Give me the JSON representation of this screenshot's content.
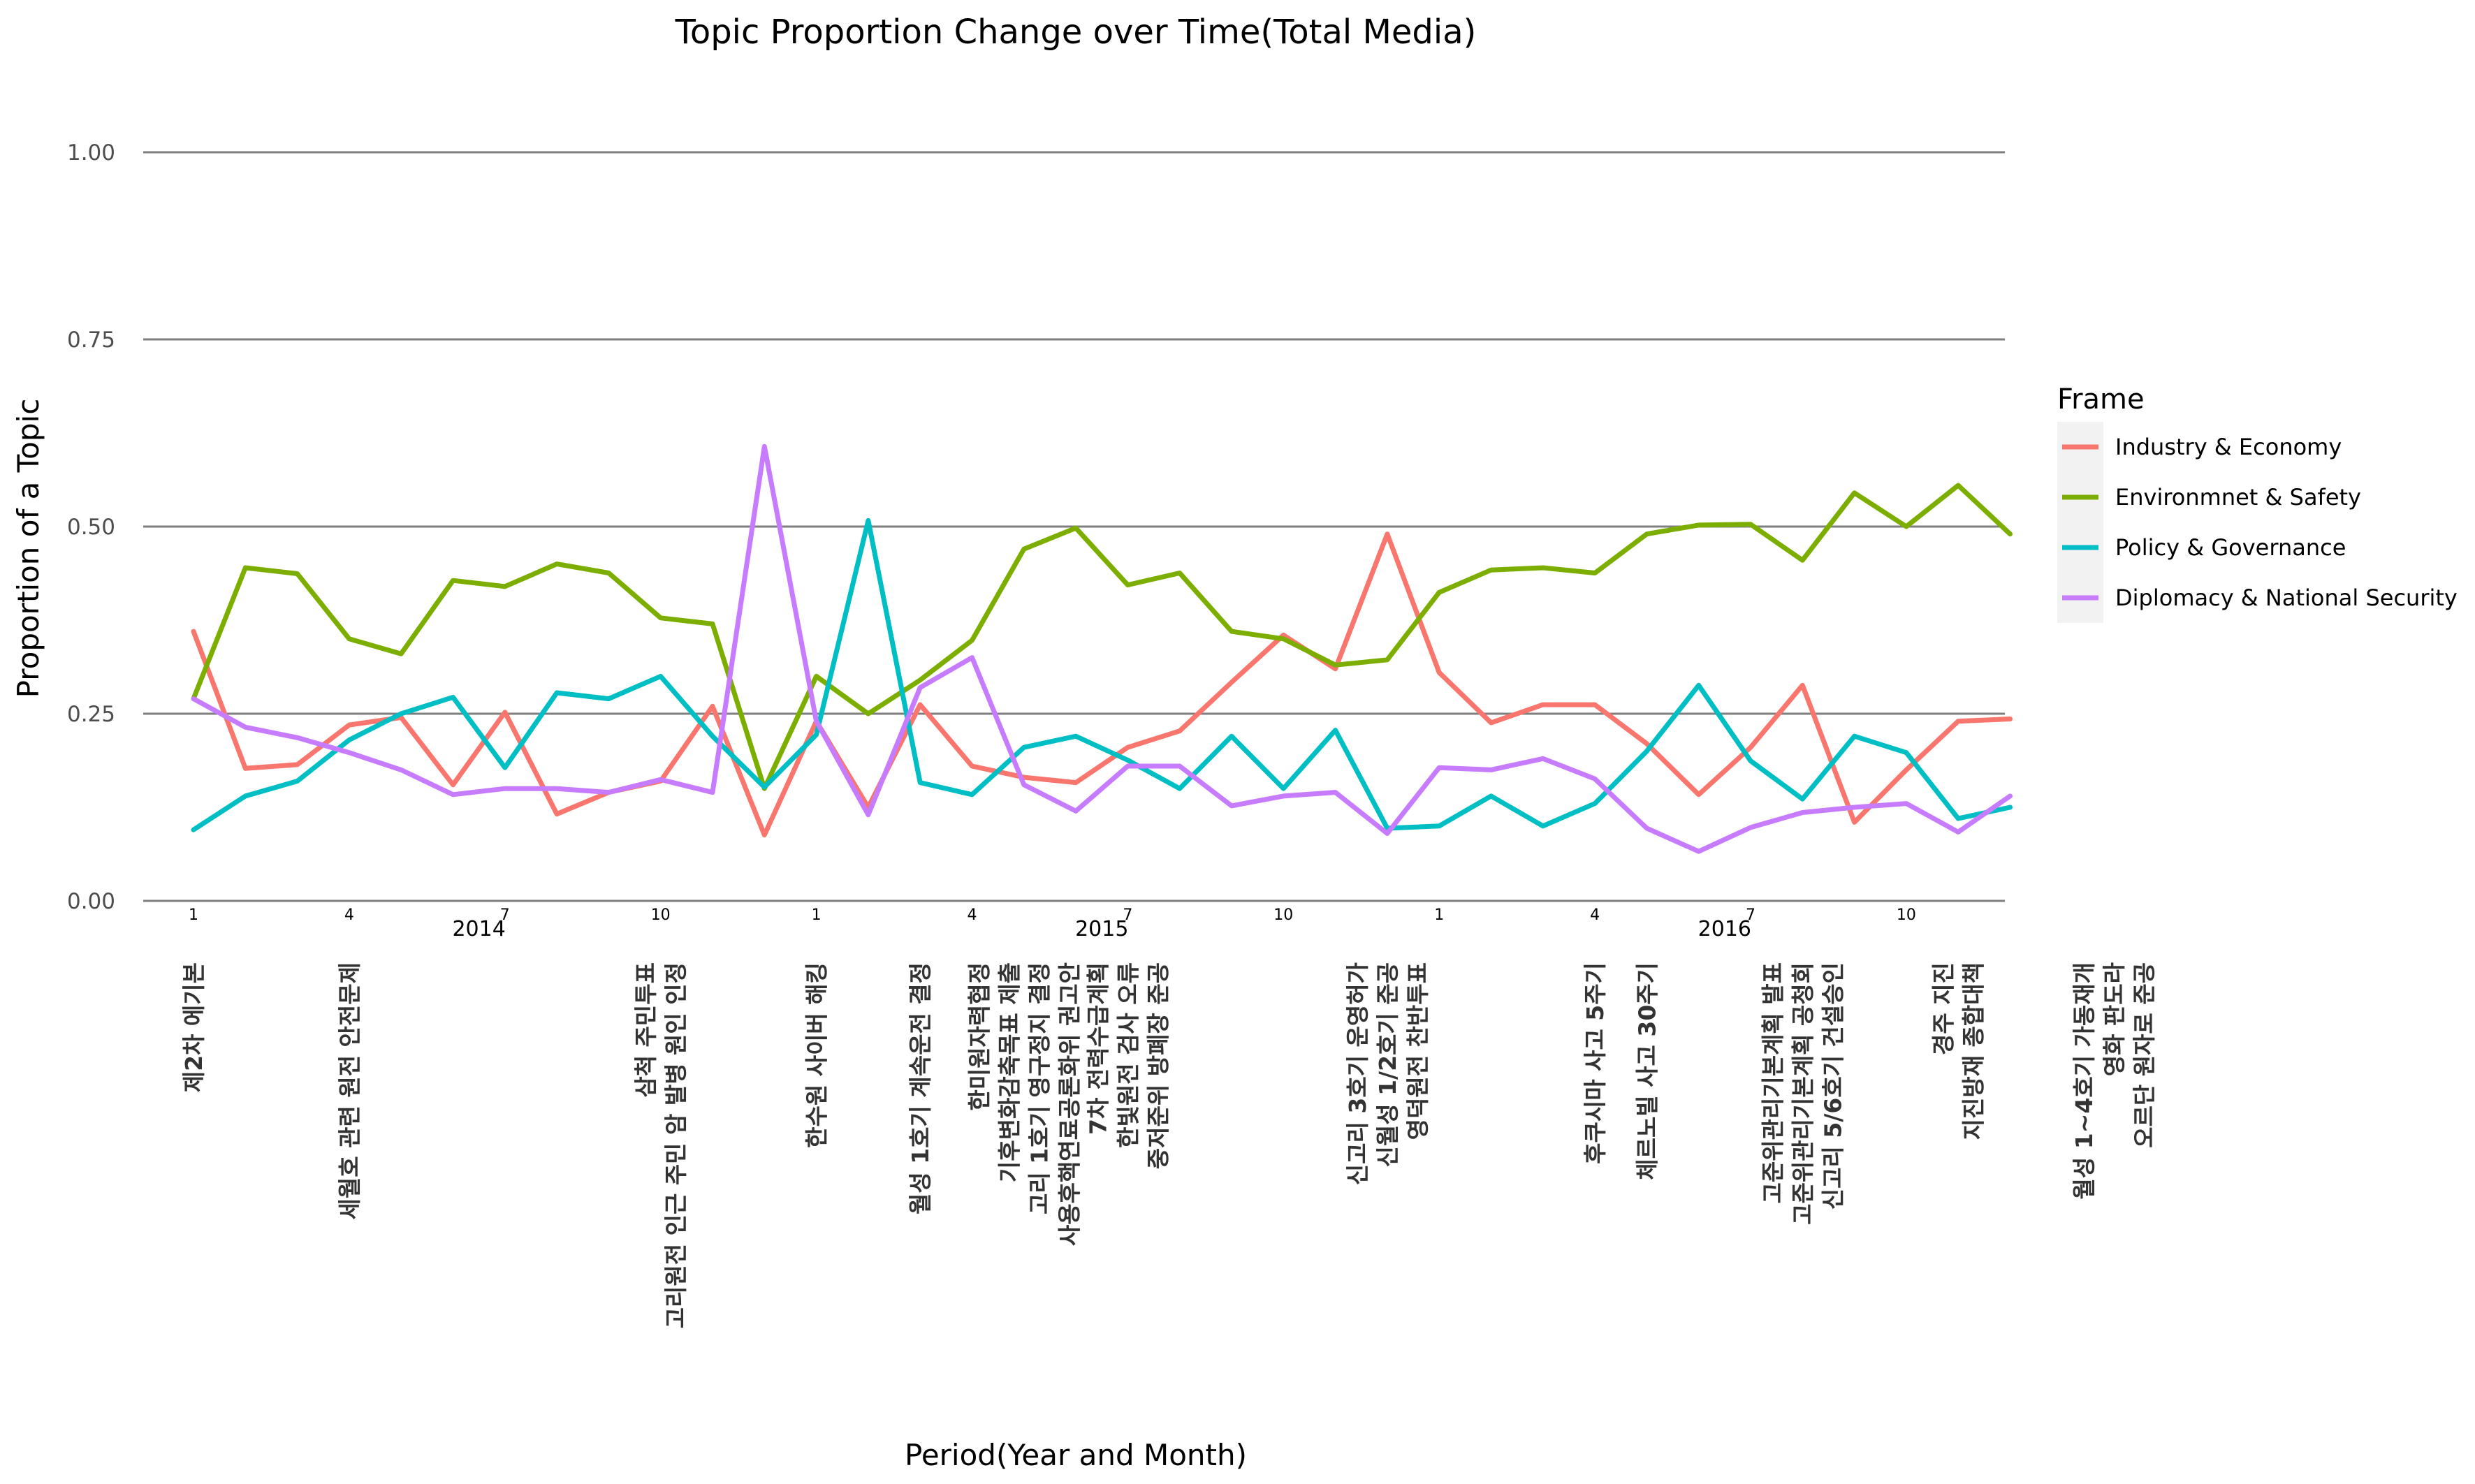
{
  "chart_data": {
    "type": "line",
    "title": "Topic Proportion Change over Time(Total Media)",
    "xlabel": "Period(Year and Month)",
    "ylabel": "Proportion of a Topic",
    "ylim": [
      0,
      1
    ],
    "yticks": [
      "0.00",
      "0.25",
      "0.50",
      "0.75",
      "1.00"
    ],
    "grid": "horizontal major lines",
    "legend_title": "Frame",
    "legend_position": "right",
    "months": [
      "1",
      "2",
      "3",
      "4",
      "5",
      "6",
      "7",
      "8",
      "9",
      "10",
      "11",
      "12",
      "1",
      "2",
      "3",
      "4",
      "5",
      "6",
      "7",
      "8",
      "9",
      "10",
      "11",
      "12",
      "1",
      "2",
      "3",
      "4",
      "5",
      "6",
      "7",
      "8",
      "9",
      "10",
      "11",
      "12"
    ],
    "month_labels_shown": [
      "1",
      "4",
      "7",
      "10"
    ],
    "years": [
      "2014",
      "2015",
      "2016"
    ],
    "series": [
      {
        "name": "Industry & Economy",
        "color": "#F8766D",
        "values": [
          0.36,
          0.177,
          0.182,
          0.235,
          0.245,
          0.155,
          0.252,
          0.116,
          0.145,
          0.16,
          0.26,
          0.088,
          0.24,
          0.125,
          0.262,
          0.18,
          0.165,
          0.158,
          0.205,
          0.227,
          0.292,
          0.355,
          0.31,
          0.49,
          0.305,
          0.238,
          0.262,
          0.262,
          0.21,
          0.142,
          0.205,
          0.288,
          0.105,
          0.175,
          0.24,
          0.243
        ]
      },
      {
        "name": "Environmnet & Safety",
        "color": "#7CAE00",
        "values": [
          0.27,
          0.445,
          0.437,
          0.35,
          0.33,
          0.428,
          0.42,
          0.45,
          0.438,
          0.378,
          0.37,
          0.15,
          0.3,
          0.25,
          0.295,
          0.348,
          0.47,
          0.498,
          0.422,
          0.438,
          0.36,
          0.35,
          0.315,
          0.322,
          0.412,
          0.442,
          0.445,
          0.438,
          0.49,
          0.502,
          0.503,
          0.455,
          0.545,
          0.5,
          0.555,
          0.49
        ]
      },
      {
        "name": "Policy & Governance",
        "color": "#00BFC4",
        "values": [
          0.095,
          0.14,
          0.16,
          0.215,
          0.25,
          0.272,
          0.178,
          0.278,
          0.27,
          0.3,
          0.22,
          0.152,
          0.222,
          0.508,
          0.158,
          0.142,
          0.205,
          0.22,
          0.188,
          0.15,
          0.22,
          0.15,
          0.228,
          0.097,
          0.1,
          0.14,
          0.1,
          0.13,
          0.2,
          0.288,
          0.187,
          0.136,
          0.22,
          0.198,
          0.11,
          0.125
        ]
      },
      {
        "name": "Diplomacy & National Security",
        "color": "#C77CFF",
        "values": [
          0.27,
          0.232,
          0.218,
          0.198,
          0.175,
          0.142,
          0.15,
          0.15,
          0.145,
          0.162,
          0.145,
          0.607,
          0.24,
          0.115,
          0.285,
          0.325,
          0.155,
          0.12,
          0.18,
          0.18,
          0.127,
          0.14,
          0.145,
          0.09,
          0.178,
          0.175,
          0.19,
          0.163,
          0.097,
          0.066,
          0.098,
          0.118,
          0.125,
          0.13,
          0.092,
          0.14
        ]
      }
    ],
    "events": [
      {
        "month_index": 0,
        "lines": [
          "제2차 에기본"
        ]
      },
      {
        "month_index": 3,
        "lines": [
          "세월호 관련 원전 안전문제"
        ]
      },
      {
        "month_index": 9,
        "lines": [
          "삼척 주민투표",
          "고리원전 인근 주민 암 발병 원인 인정"
        ]
      },
      {
        "month_index": 12,
        "lines": [
          "한수원 사이버 해킹"
        ]
      },
      {
        "month_index": 14,
        "lines": [
          "월성 1호기 계속운전 결정"
        ]
      },
      {
        "month_index": 16,
        "lines": [
          "한미원자력협정",
          "기후변화감축목표 제출",
          "고리 1호기 영구정지 결정",
          "사용후핵연료공론화위 권고안"
        ]
      },
      {
        "month_index": 18,
        "lines": [
          "7차 전력수급계획",
          "한빛원전 검사 오류",
          "중저준위 방폐장 준공"
        ]
      },
      {
        "month_index": 23,
        "lines": [
          "신고리 3호기 운영허가",
          "신월성 1/2호기 준공",
          "영덕원전 찬반투표"
        ]
      },
      {
        "month_index": 27,
        "lines": [
          "후쿠시마 사고 5주기"
        ]
      },
      {
        "month_index": 28,
        "lines": [
          "체르노빌 사고 30주기"
        ]
      },
      {
        "month_index": 31,
        "lines": [
          "고준위관리기본계획 발표",
          "고준위관리기본계획 공청회",
          "신고리 5/6호기 건설승인"
        ]
      },
      {
        "month_index": 34,
        "lines": [
          "경주 지진",
          "지진방재 종합대책"
        ]
      },
      {
        "month_index": 37,
        "lines": [
          "월성 1~4호기 가동재개",
          "영화 판도라",
          "오르단 원자로 준공"
        ]
      }
    ]
  }
}
